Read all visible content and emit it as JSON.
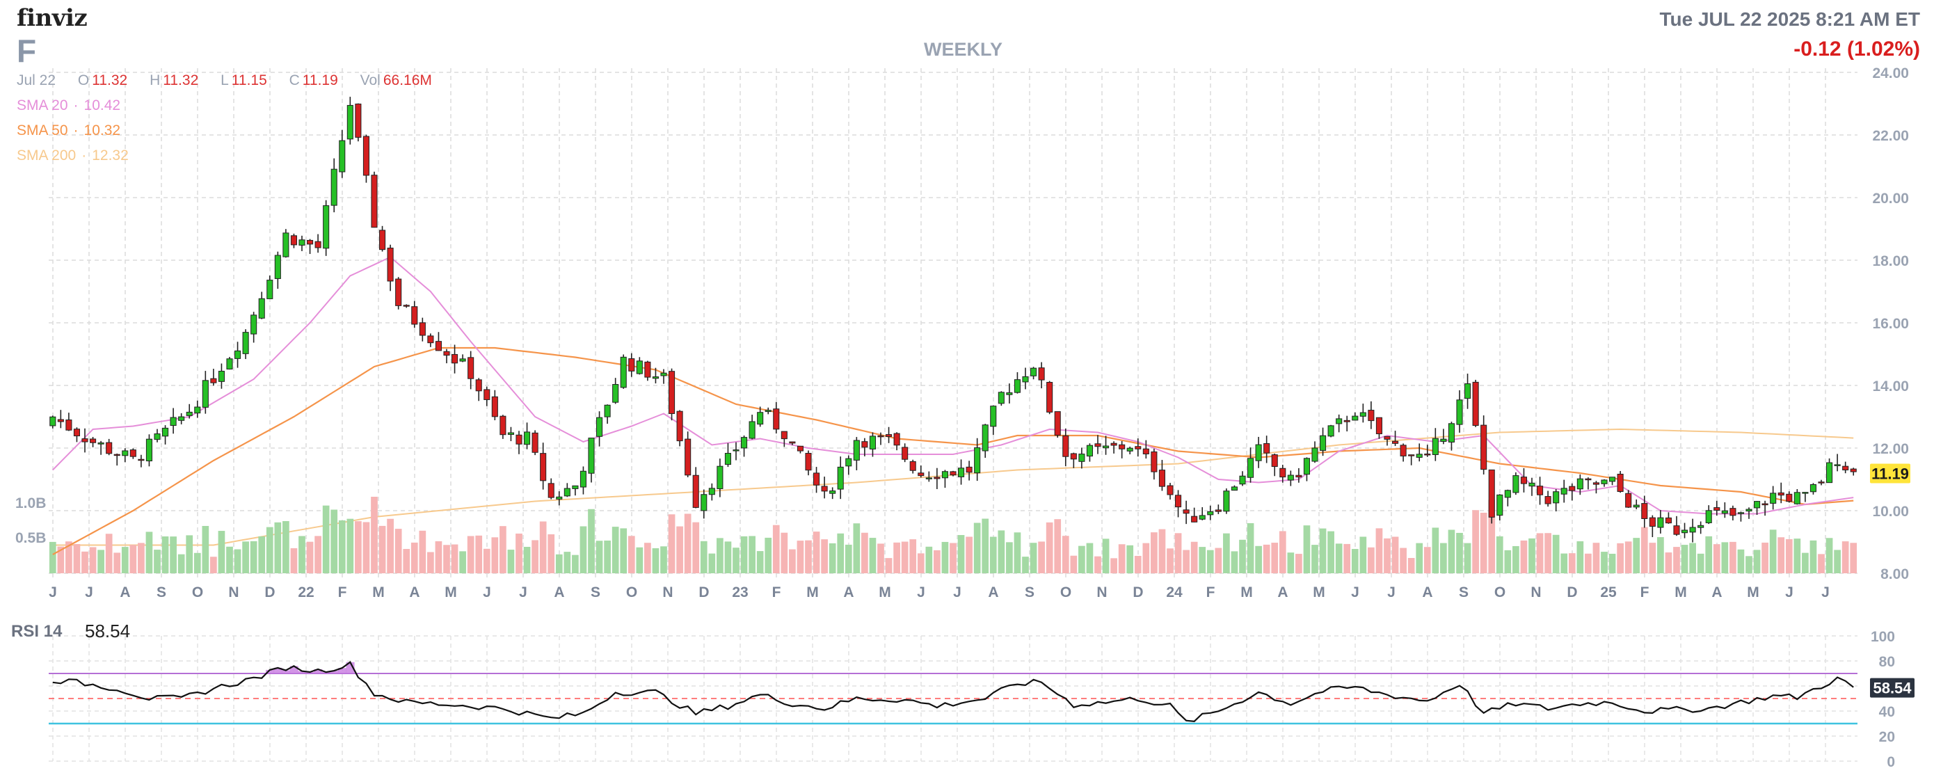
{
  "header": {
    "logo_text": "finviz",
    "ticker": "F",
    "period": "WEEKLY",
    "datetime": "Tue JUL 22 2025 8:21 AM ET",
    "change": "-0.12 (1.02%)"
  },
  "ohlc": {
    "date": "Jul 22",
    "open_label": "O",
    "open": "11.32",
    "high_label": "H",
    "high": "11.32",
    "low_label": "L",
    "low": "11.15",
    "close_label": "C",
    "close": "11.19",
    "volume_label": "Vol",
    "volume": "66.16M"
  },
  "legend": {
    "sma20": {
      "label": "SMA 20",
      "value": "10.42",
      "color": "#e58ed9"
    },
    "sma50": {
      "label": "SMA 50",
      "value": "10.32",
      "color": "#f5944a"
    },
    "sma200": {
      "label": "SMA 200",
      "value": "12.32",
      "color": "#f7c98d"
    }
  },
  "volume_axis": {
    "label_1": "1.0B",
    "label_2": "0.5B"
  },
  "rsi": {
    "label": "RSI 14",
    "value": "58.54"
  },
  "price_badge": "11.19",
  "rsi_badge": "58.54",
  "colors": {
    "up": "#26c026",
    "down": "#d41f1f",
    "vol_up": "#a4d9a4",
    "vol_down": "#f6b4b4",
    "price_badge_bg": "#ffe43a",
    "rsi_line": "#111111",
    "rsi_overbought": "#b56fd6",
    "rsi_oversold": "#3fc3e0",
    "rsi_mid": "#ff6b6b"
  },
  "chart_data": [
    {
      "type": "candlestick",
      "title": "",
      "ylim": [
        8,
        24
      ],
      "y_ticks": [
        "24.00",
        "22.00",
        "20.00",
        "18.00",
        "16.00",
        "14.00",
        "12.00",
        "10.00",
        "8.00"
      ],
      "x_labels": [
        "J",
        "J",
        "A",
        "S",
        "O",
        "N",
        "D",
        "22",
        "F",
        "M",
        "A",
        "M",
        "J",
        "J",
        "A",
        "S",
        "O",
        "N",
        "D",
        "23",
        "F",
        "M",
        "A",
        "M",
        "J",
        "J",
        "A",
        "S",
        "O",
        "N",
        "D",
        "24",
        "F",
        "M",
        "A",
        "M",
        "J",
        "J",
        "A",
        "S",
        "O",
        "N",
        "D",
        "25",
        "F",
        "M",
        "A",
        "M",
        "J",
        "J"
      ],
      "anchors": [
        {
          "x": 0,
          "close": 13.0
        },
        {
          "x": 5,
          "close": 12.2
        },
        {
          "x": 10,
          "close": 11.6
        },
        {
          "x": 17,
          "close": 13.2
        },
        {
          "x": 24,
          "close": 15.7
        },
        {
          "x": 29,
          "close": 18.8
        },
        {
          "x": 33,
          "close": 18.4
        },
        {
          "x": 37,
          "close": 23.0
        },
        {
          "x": 40,
          "close": 19.2
        },
        {
          "x": 43,
          "close": 16.6
        },
        {
          "x": 48,
          "close": 15.3
        },
        {
          "x": 52,
          "close": 14.4
        },
        {
          "x": 56,
          "close": 12.4
        },
        {
          "x": 59,
          "close": 12.3
        },
        {
          "x": 62,
          "close": 10.4
        },
        {
          "x": 65,
          "close": 10.8
        },
        {
          "x": 71,
          "close": 14.8
        },
        {
          "x": 76,
          "close": 14.2
        },
        {
          "x": 80,
          "close": 10.3
        },
        {
          "x": 84,
          "close": 11.6
        },
        {
          "x": 88,
          "close": 13.2
        },
        {
          "x": 91,
          "close": 12.5
        },
        {
          "x": 96,
          "close": 10.4
        },
        {
          "x": 100,
          "close": 12.3
        },
        {
          "x": 104,
          "close": 12.2
        },
        {
          "x": 108,
          "close": 11.2
        },
        {
          "x": 114,
          "close": 11.3
        },
        {
          "x": 118,
          "close": 13.7
        },
        {
          "x": 122,
          "close": 14.7
        },
        {
          "x": 126,
          "close": 11.8
        },
        {
          "x": 130,
          "close": 11.9
        },
        {
          "x": 134,
          "close": 12.1
        },
        {
          "x": 137,
          "close": 11.4
        },
        {
          "x": 141,
          "close": 9.7
        },
        {
          "x": 145,
          "close": 10.2
        },
        {
          "x": 150,
          "close": 11.9
        },
        {
          "x": 154,
          "close": 10.9
        },
        {
          "x": 158,
          "close": 12.3
        },
        {
          "x": 162,
          "close": 13.2
        },
        {
          "x": 166,
          "close": 12.2
        },
        {
          "x": 171,
          "close": 11.6
        },
        {
          "x": 176,
          "close": 13.9
        },
        {
          "x": 179,
          "close": 10.0
        },
        {
          "x": 182,
          "close": 10.9
        },
        {
          "x": 186,
          "close": 10.4
        },
        {
          "x": 190,
          "close": 10.8
        },
        {
          "x": 194,
          "close": 10.9
        },
        {
          "x": 198,
          "close": 9.7
        },
        {
          "x": 202,
          "close": 9.4
        },
        {
          "x": 206,
          "close": 9.9
        },
        {
          "x": 210,
          "close": 9.8
        },
        {
          "x": 214,
          "close": 10.5
        },
        {
          "x": 218,
          "close": 10.4
        },
        {
          "x": 220,
          "close": 11.0
        },
        {
          "x": 222,
          "close": 11.7
        },
        {
          "x": 224,
          "close": 11.19
        }
      ],
      "sma20": [
        {
          "x": 0,
          "y": 11.3
        },
        {
          "x": 5,
          "y": 12.6
        },
        {
          "x": 10,
          "y": 12.7
        },
        {
          "x": 17,
          "y": 13.0
        },
        {
          "x": 25,
          "y": 14.2
        },
        {
          "x": 32,
          "y": 16.0
        },
        {
          "x": 37,
          "y": 17.5
        },
        {
          "x": 42,
          "y": 18.1
        },
        {
          "x": 47,
          "y": 17.0
        },
        {
          "x": 52,
          "y": 15.4
        },
        {
          "x": 56,
          "y": 14.2
        },
        {
          "x": 60,
          "y": 13.0
        },
        {
          "x": 66,
          "y": 12.2
        },
        {
          "x": 72,
          "y": 12.7
        },
        {
          "x": 76,
          "y": 13.1
        },
        {
          "x": 82,
          "y": 12.1
        },
        {
          "x": 88,
          "y": 12.3
        },
        {
          "x": 94,
          "y": 12.0
        },
        {
          "x": 100,
          "y": 11.8
        },
        {
          "x": 106,
          "y": 11.8
        },
        {
          "x": 112,
          "y": 11.8
        },
        {
          "x": 118,
          "y": 12.1
        },
        {
          "x": 124,
          "y": 12.6
        },
        {
          "x": 130,
          "y": 12.5
        },
        {
          "x": 135,
          "y": 12.2
        },
        {
          "x": 140,
          "y": 11.7
        },
        {
          "x": 145,
          "y": 11.0
        },
        {
          "x": 150,
          "y": 10.9
        },
        {
          "x": 155,
          "y": 11.0
        },
        {
          "x": 160,
          "y": 11.9
        },
        {
          "x": 166,
          "y": 12.4
        },
        {
          "x": 172,
          "y": 12.2
        },
        {
          "x": 178,
          "y": 12.4
        },
        {
          "x": 184,
          "y": 10.8
        },
        {
          "x": 190,
          "y": 10.6
        },
        {
          "x": 195,
          "y": 10.8
        },
        {
          "x": 200,
          "y": 10.0
        },
        {
          "x": 206,
          "y": 9.9
        },
        {
          "x": 212,
          "y": 9.9
        },
        {
          "x": 218,
          "y": 10.2
        },
        {
          "x": 224,
          "y": 10.42
        }
      ],
      "sma50": [
        {
          "x": 0,
          "y": 8.6
        },
        {
          "x": 10,
          "y": 10.0
        },
        {
          "x": 20,
          "y": 11.6
        },
        {
          "x": 30,
          "y": 13.0
        },
        {
          "x": 40,
          "y": 14.6
        },
        {
          "x": 48,
          "y": 15.2
        },
        {
          "x": 55,
          "y": 15.2
        },
        {
          "x": 65,
          "y": 14.9
        },
        {
          "x": 75,
          "y": 14.5
        },
        {
          "x": 85,
          "y": 13.4
        },
        {
          "x": 95,
          "y": 12.9
        },
        {
          "x": 105,
          "y": 12.3
        },
        {
          "x": 115,
          "y": 12.1
        },
        {
          "x": 120,
          "y": 12.4
        },
        {
          "x": 130,
          "y": 12.4
        },
        {
          "x": 140,
          "y": 11.9
        },
        {
          "x": 150,
          "y": 11.7
        },
        {
          "x": 160,
          "y": 11.9
        },
        {
          "x": 170,
          "y": 12.0
        },
        {
          "x": 180,
          "y": 11.5
        },
        {
          "x": 190,
          "y": 11.2
        },
        {
          "x": 200,
          "y": 10.8
        },
        {
          "x": 210,
          "y": 10.6
        },
        {
          "x": 218,
          "y": 10.2
        },
        {
          "x": 224,
          "y": 10.32
        }
      ],
      "sma200": [
        {
          "x": 0,
          "y": 8.9
        },
        {
          "x": 20,
          "y": 8.9
        },
        {
          "x": 40,
          "y": 9.8
        },
        {
          "x": 60,
          "y": 10.3
        },
        {
          "x": 80,
          "y": 10.6
        },
        {
          "x": 100,
          "y": 10.9
        },
        {
          "x": 120,
          "y": 11.3
        },
        {
          "x": 140,
          "y": 11.5
        },
        {
          "x": 160,
          "y": 12.1
        },
        {
          "x": 180,
          "y": 12.5
        },
        {
          "x": 195,
          "y": 12.6
        },
        {
          "x": 210,
          "y": 12.5
        },
        {
          "x": 224,
          "y": 12.32
        }
      ]
    },
    {
      "type": "line",
      "title": "RSI 14",
      "ylim": [
        0,
        100
      ],
      "y_ticks": [
        "100",
        "80",
        "60",
        "40",
        "20",
        "0"
      ],
      "levels": [
        70,
        50,
        30
      ],
      "anchors": [
        {
          "x": 0,
          "y": 65
        },
        {
          "x": 4,
          "y": 62
        },
        {
          "x": 8,
          "y": 58
        },
        {
          "x": 12,
          "y": 50
        },
        {
          "x": 16,
          "y": 50
        },
        {
          "x": 20,
          "y": 58
        },
        {
          "x": 25,
          "y": 66
        },
        {
          "x": 29,
          "y": 75
        },
        {
          "x": 33,
          "y": 72
        },
        {
          "x": 37,
          "y": 77
        },
        {
          "x": 40,
          "y": 54
        },
        {
          "x": 44,
          "y": 47
        },
        {
          "x": 50,
          "y": 45
        },
        {
          "x": 56,
          "y": 42
        },
        {
          "x": 62,
          "y": 34
        },
        {
          "x": 66,
          "y": 38
        },
        {
          "x": 70,
          "y": 55
        },
        {
          "x": 75,
          "y": 55
        },
        {
          "x": 80,
          "y": 38
        },
        {
          "x": 84,
          "y": 44
        },
        {
          "x": 88,
          "y": 53
        },
        {
          "x": 92,
          "y": 46
        },
        {
          "x": 96,
          "y": 42
        },
        {
          "x": 100,
          "y": 50
        },
        {
          "x": 106,
          "y": 49
        },
        {
          "x": 110,
          "y": 44
        },
        {
          "x": 116,
          "y": 50
        },
        {
          "x": 120,
          "y": 62
        },
        {
          "x": 123,
          "y": 63
        },
        {
          "x": 127,
          "y": 45
        },
        {
          "x": 131,
          "y": 47
        },
        {
          "x": 135,
          "y": 50
        },
        {
          "x": 139,
          "y": 44
        },
        {
          "x": 141,
          "y": 31
        },
        {
          "x": 145,
          "y": 40
        },
        {
          "x": 150,
          "y": 55
        },
        {
          "x": 154,
          "y": 46
        },
        {
          "x": 158,
          "y": 56
        },
        {
          "x": 162,
          "y": 59
        },
        {
          "x": 166,
          "y": 53
        },
        {
          "x": 171,
          "y": 48
        },
        {
          "x": 175,
          "y": 62
        },
        {
          "x": 178,
          "y": 38
        },
        {
          "x": 182,
          "y": 46
        },
        {
          "x": 186,
          "y": 42
        },
        {
          "x": 190,
          "y": 46
        },
        {
          "x": 194,
          "y": 47
        },
        {
          "x": 198,
          "y": 40
        },
        {
          "x": 202,
          "y": 41
        },
        {
          "x": 206,
          "y": 42
        },
        {
          "x": 210,
          "y": 47
        },
        {
          "x": 214,
          "y": 52
        },
        {
          "x": 217,
          "y": 51
        },
        {
          "x": 220,
          "y": 60
        },
        {
          "x": 222,
          "y": 66
        },
        {
          "x": 224,
          "y": 58.54
        }
      ]
    }
  ]
}
